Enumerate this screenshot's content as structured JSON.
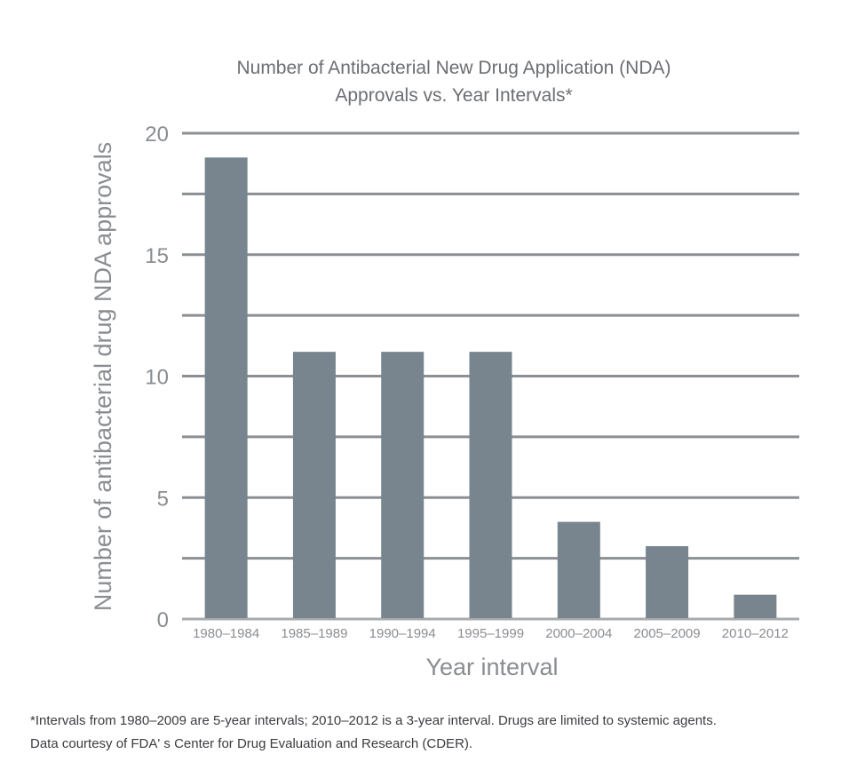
{
  "chart_data": {
    "type": "bar",
    "title_lines": [
      "Number of Antibacterial New Drug Application (NDA)",
      "Approvals vs. Year Intervals*"
    ],
    "xlabel": "Year interval",
    "ylabel": "Number of antibacterial drug NDA approvals",
    "categories": [
      "1980–1984",
      "1985–1989",
      "1990–1994",
      "1995–1999",
      "2000–2004",
      "2005–2009",
      "2010–2012"
    ],
    "values": [
      19,
      11,
      11,
      11,
      4,
      3,
      1
    ],
    "ylim": [
      0,
      20
    ],
    "yticks": [
      0,
      5,
      10,
      15,
      20
    ],
    "gridlines": [
      2.5,
      5,
      7.5,
      10,
      12.5,
      15,
      17.5,
      20
    ],
    "grid": true,
    "colors": {
      "bar": "#78858e",
      "grid": "#8c8f93",
      "axis": "#a8abae"
    }
  },
  "footnotes": [
    "*Intervals from 1980–2009 are 5-year intervals; 2010–2012 is a 3-year interval. Drugs are limited to systemic agents.",
    "Data courtesy of FDA' s Center for Drug Evaluation and Research (CDER)."
  ]
}
